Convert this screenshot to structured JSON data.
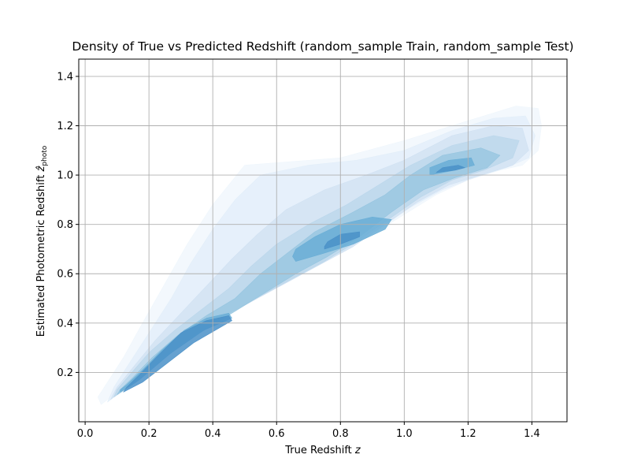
{
  "chart_data": {
    "type": "contour-density",
    "title": "Density of True vs Predicted Redshift (random_sample Train, random_sample Test)",
    "xlabel_text": "True Redshift",
    "xlabel_var": "z",
    "ylabel_text": "Estimated Photometric Redshift",
    "ylabel_var": "ẑ",
    "ylabel_sub": "photo",
    "xlim": [
      -0.02,
      1.51
    ],
    "ylim": [
      0.0,
      1.47
    ],
    "xticks": [
      0.0,
      0.2,
      0.4,
      0.6,
      0.8,
      1.0,
      1.2,
      1.4
    ],
    "xtick_labels": [
      "0.0",
      "0.2",
      "0.4",
      "0.6",
      "0.8",
      "1.0",
      "1.2",
      "1.4"
    ],
    "yticks": [
      0.2,
      0.4,
      0.6,
      0.8,
      1.0,
      1.2,
      1.4
    ],
    "ytick_labels": [
      "0.2",
      "0.4",
      "0.6",
      "0.8",
      "1.0",
      "1.2",
      "1.4"
    ],
    "grid": true,
    "colormap": "Blues",
    "fill_colors": [
      "#eff6fc",
      "#e2eef9",
      "#d0e1f2",
      "#bad6eb",
      "#94c4df",
      "#6aaed6",
      "#4a90c8"
    ],
    "density_levels": [
      {
        "level": 1,
        "polygon": [
          [
            0.05,
            0.07
          ],
          [
            0.12,
            0.14
          ],
          [
            0.2,
            0.26
          ],
          [
            0.3,
            0.36
          ],
          [
            0.4,
            0.42
          ],
          [
            0.5,
            0.48
          ],
          [
            0.6,
            0.55
          ],
          [
            0.7,
            0.62
          ],
          [
            0.8,
            0.69
          ],
          [
            0.9,
            0.76
          ],
          [
            1.0,
            0.84
          ],
          [
            1.1,
            0.92
          ],
          [
            1.2,
            0.98
          ],
          [
            1.3,
            1.02
          ],
          [
            1.37,
            1.04
          ],
          [
            1.42,
            1.1
          ],
          [
            1.43,
            1.2
          ],
          [
            1.42,
            1.27
          ],
          [
            1.35,
            1.28
          ],
          [
            1.2,
            1.22
          ],
          [
            1.0,
            1.14
          ],
          [
            0.8,
            1.07
          ],
          [
            0.6,
            1.05
          ],
          [
            0.5,
            1.04
          ],
          [
            0.4,
            0.88
          ],
          [
            0.32,
            0.72
          ],
          [
            0.25,
            0.56
          ],
          [
            0.18,
            0.4
          ],
          [
            0.12,
            0.26
          ],
          [
            0.07,
            0.16
          ],
          [
            0.04,
            0.1
          ]
        ]
      },
      {
        "level": 2,
        "polygon": [
          [
            0.07,
            0.08
          ],
          [
            0.14,
            0.15
          ],
          [
            0.22,
            0.26
          ],
          [
            0.32,
            0.36
          ],
          [
            0.42,
            0.42
          ],
          [
            0.52,
            0.49
          ],
          [
            0.62,
            0.56
          ],
          [
            0.72,
            0.63
          ],
          [
            0.82,
            0.7
          ],
          [
            0.92,
            0.78
          ],
          [
            1.02,
            0.87
          ],
          [
            1.12,
            0.94
          ],
          [
            1.22,
            0.99
          ],
          [
            1.32,
            1.03
          ],
          [
            1.39,
            1.07
          ],
          [
            1.41,
            1.16
          ],
          [
            1.38,
            1.24
          ],
          [
            1.28,
            1.23
          ],
          [
            1.15,
            1.18
          ],
          [
            1.0,
            1.1
          ],
          [
            0.85,
            1.06
          ],
          [
            0.7,
            1.04
          ],
          [
            0.55,
            1.0
          ],
          [
            0.47,
            0.9
          ],
          [
            0.4,
            0.78
          ],
          [
            0.33,
            0.64
          ],
          [
            0.27,
            0.5
          ],
          [
            0.2,
            0.36
          ],
          [
            0.14,
            0.24
          ],
          [
            0.09,
            0.14
          ]
        ]
      },
      {
        "level": 3,
        "polygon": [
          [
            0.08,
            0.09
          ],
          [
            0.15,
            0.16
          ],
          [
            0.24,
            0.27
          ],
          [
            0.34,
            0.36
          ],
          [
            0.44,
            0.43
          ],
          [
            0.54,
            0.5
          ],
          [
            0.64,
            0.57
          ],
          [
            0.74,
            0.64
          ],
          [
            0.84,
            0.71
          ],
          [
            0.94,
            0.8
          ],
          [
            1.04,
            0.89
          ],
          [
            1.14,
            0.96
          ],
          [
            1.24,
            1.0
          ],
          [
            1.34,
            1.04
          ],
          [
            1.39,
            1.1
          ],
          [
            1.37,
            1.19
          ],
          [
            1.28,
            1.2
          ],
          [
            1.15,
            1.16
          ],
          [
            1.0,
            1.06
          ],
          [
            0.88,
            1.0
          ],
          [
            0.75,
            0.94
          ],
          [
            0.63,
            0.86
          ],
          [
            0.54,
            0.76
          ],
          [
            0.46,
            0.66
          ],
          [
            0.38,
            0.55
          ],
          [
            0.3,
            0.44
          ],
          [
            0.22,
            0.33
          ],
          [
            0.15,
            0.22
          ],
          [
            0.1,
            0.14
          ]
        ]
      },
      {
        "level": 4,
        "polygon": [
          [
            0.09,
            0.1
          ],
          [
            0.16,
            0.16
          ],
          [
            0.25,
            0.27
          ],
          [
            0.35,
            0.36
          ],
          [
            0.45,
            0.44
          ],
          [
            0.55,
            0.51
          ],
          [
            0.65,
            0.58
          ],
          [
            0.75,
            0.65
          ],
          [
            0.85,
            0.73
          ],
          [
            0.95,
            0.82
          ],
          [
            1.05,
            0.91
          ],
          [
            1.15,
            0.98
          ],
          [
            1.25,
            1.02
          ],
          [
            1.34,
            1.07
          ],
          [
            1.36,
            1.14
          ],
          [
            1.28,
            1.16
          ],
          [
            1.15,
            1.12
          ],
          [
            1.02,
            1.04
          ],
          [
            0.92,
            0.96
          ],
          [
            0.82,
            0.88
          ],
          [
            0.7,
            0.8
          ],
          [
            0.6,
            0.72
          ],
          [
            0.52,
            0.63
          ],
          [
            0.45,
            0.54
          ],
          [
            0.37,
            0.46
          ],
          [
            0.28,
            0.37
          ],
          [
            0.2,
            0.28
          ],
          [
            0.14,
            0.19
          ],
          [
            0.1,
            0.13
          ]
        ]
      },
      {
        "level": 5,
        "polygon": [
          [
            0.1,
            0.11
          ],
          [
            0.17,
            0.17
          ],
          [
            0.26,
            0.27
          ],
          [
            0.36,
            0.36
          ],
          [
            0.46,
            0.44
          ],
          [
            0.56,
            0.52
          ],
          [
            0.66,
            0.6
          ],
          [
            0.76,
            0.67
          ],
          [
            0.86,
            0.75
          ],
          [
            0.96,
            0.85
          ],
          [
            1.06,
            0.94
          ],
          [
            1.16,
            0.99
          ],
          [
            1.26,
            1.03
          ],
          [
            1.3,
            1.08
          ],
          [
            1.24,
            1.11
          ],
          [
            1.12,
            1.08
          ],
          [
            1.02,
            1.0
          ],
          [
            0.94,
            0.92
          ],
          [
            0.84,
            0.85
          ],
          [
            0.72,
            0.77
          ],
          [
            0.63,
            0.68
          ],
          [
            0.55,
            0.6
          ],
          [
            0.47,
            0.5
          ],
          [
            0.38,
            0.43
          ],
          [
            0.29,
            0.35
          ],
          [
            0.21,
            0.26
          ],
          [
            0.15,
            0.18
          ],
          [
            0.11,
            0.13
          ]
        ]
      },
      {
        "level": 6,
        "polygon": [
          [
            0.11,
            0.12
          ],
          [
            0.17,
            0.17
          ],
          [
            0.27,
            0.28
          ],
          [
            0.37,
            0.37
          ],
          [
            0.46,
            0.42
          ],
          [
            0.45,
            0.44
          ],
          [
            0.38,
            0.42
          ],
          [
            0.31,
            0.37
          ],
          [
            0.24,
            0.29
          ],
          [
            0.18,
            0.21
          ],
          [
            0.13,
            0.15
          ],
          [
            0.11,
            0.13
          ],
          [
            0.11,
            0.12
          ]
        ]
      },
      {
        "level": 6,
        "polygon": [
          [
            0.66,
            0.65
          ],
          [
            0.74,
            0.68
          ],
          [
            0.84,
            0.72
          ],
          [
            0.94,
            0.78
          ],
          [
            0.96,
            0.82
          ],
          [
            0.9,
            0.83
          ],
          [
            0.8,
            0.8
          ],
          [
            0.72,
            0.75
          ],
          [
            0.66,
            0.7
          ],
          [
            0.65,
            0.67
          ]
        ]
      },
      {
        "level": 6,
        "polygon": [
          [
            1.08,
            1.0
          ],
          [
            1.16,
            1.02
          ],
          [
            1.22,
            1.04
          ],
          [
            1.21,
            1.07
          ],
          [
            1.14,
            1.06
          ],
          [
            1.08,
            1.03
          ]
        ]
      },
      {
        "level": 7,
        "polygon": [
          [
            0.12,
            0.12
          ],
          [
            0.18,
            0.16
          ],
          [
            0.26,
            0.24
          ],
          [
            0.34,
            0.32
          ],
          [
            0.42,
            0.38
          ],
          [
            0.46,
            0.41
          ],
          [
            0.45,
            0.43
          ],
          [
            0.38,
            0.41
          ],
          [
            0.3,
            0.36
          ],
          [
            0.23,
            0.27
          ],
          [
            0.17,
            0.19
          ],
          [
            0.13,
            0.14
          ]
        ]
      },
      {
        "level": 7,
        "polygon": [
          [
            0.75,
            0.7
          ],
          [
            0.8,
            0.72
          ],
          [
            0.86,
            0.75
          ],
          [
            0.86,
            0.77
          ],
          [
            0.8,
            0.76
          ],
          [
            0.76,
            0.73
          ],
          [
            0.75,
            0.71
          ]
        ]
      },
      {
        "level": 7,
        "polygon": [
          [
            1.1,
            1.01
          ],
          [
            1.16,
            1.02
          ],
          [
            1.19,
            1.03
          ],
          [
            1.17,
            1.04
          ],
          [
            1.12,
            1.03
          ]
        ]
      }
    ]
  }
}
